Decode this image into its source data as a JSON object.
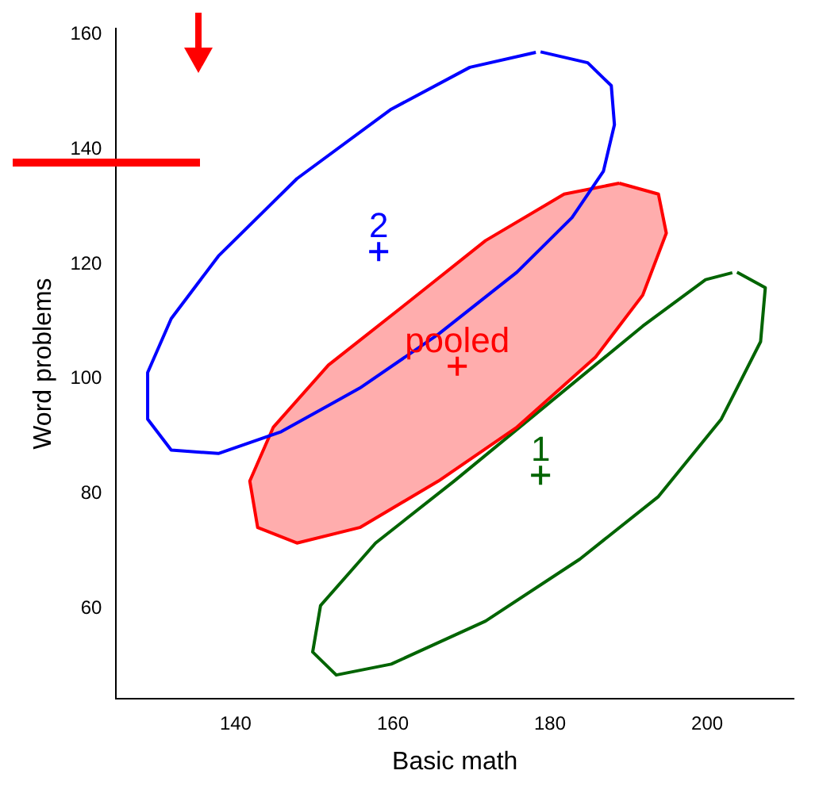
{
  "chart_data": {
    "type": "line",
    "xlabel": "Basic math",
    "ylabel": "Word problems",
    "xlim": [
      124.8,
      211
    ],
    "ylim": [
      44.3,
      161
    ],
    "xticks": [
      140,
      160,
      180,
      200
    ],
    "yticks": [
      60,
      80,
      100,
      120,
      140,
      160
    ],
    "grid": false,
    "legend": false,
    "series": [
      {
        "color": "#0000ff",
        "marker": "none",
        "x": [
          178.8,
          184.8,
          187.8,
          188.2,
          186.8,
          182.8,
          175.8,
          165.8,
          155.8,
          145.8,
          137.8,
          131.8,
          128.8,
          128.8,
          131.8,
          137.8,
          147.8,
          159.8,
          169.8,
          178.2
        ],
        "values": [
          157,
          155.1,
          151.1,
          144.3,
          136.2,
          128.1,
          118.6,
          107.8,
          98.4,
          90.8,
          87,
          87.6,
          93,
          101.1,
          110.5,
          121.4,
          134.9,
          147,
          154.3,
          156.9
        ]
      },
      {
        "type": "area",
        "color": "#ff0000",
        "marker": "none",
        "x": [
          188.8,
          193.8,
          194.8,
          191.8,
          185.8,
          175.8,
          165.8,
          155.8,
          147.8,
          142.8,
          141.8,
          144.8,
          151.8,
          161.8,
          171.8,
          181.8,
          188.8
        ],
        "values": [
          134.1,
          132.2,
          125.4,
          114.6,
          103.8,
          91.6,
          82.2,
          74.1,
          71.4,
          74.1,
          82.2,
          91.6,
          102.4,
          113.2,
          124.1,
          132.2,
          134.1
        ]
      },
      {
        "color": "#006400",
        "marker": "none",
        "x": [
          203.8,
          207.4,
          206.8,
          201.8,
          193.8,
          183.8,
          171.8,
          159.8,
          152.8,
          149.8,
          150.8,
          157.8,
          167.8,
          179.8,
          191.8,
          199.8,
          203.2
        ],
        "values": [
          118.6,
          115.9,
          106.5,
          93,
          79.5,
          68.6,
          57.8,
          50.3,
          48.4,
          52.4,
          60.5,
          71.4,
          82.2,
          95.7,
          109.2,
          117.3,
          118.5
        ]
      },
      {
        "type": "scatter",
        "name": "2",
        "color": "#0000ff",
        "marker": "cross",
        "x": [
          158.2
        ],
        "values": [
          122.2
        ]
      },
      {
        "type": "scatter",
        "name": "pooled",
        "color": "#ff0000",
        "marker": "cross",
        "x": [
          168.2
        ],
        "values": [
          102.2
        ]
      },
      {
        "type": "scatter",
        "name": "1",
        "color": "#006400",
        "marker": "cross",
        "x": [
          178.8
        ],
        "values": [
          83.2
        ]
      }
    ]
  }
}
